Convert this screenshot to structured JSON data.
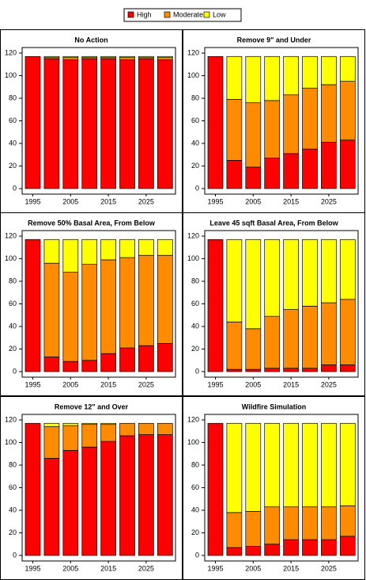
{
  "chart_data": [
    {
      "type": "bar",
      "stacked": true,
      "title": "No Action",
      "categories": [
        1995,
        null,
        2005,
        null,
        2015,
        null,
        2025,
        null
      ],
      "series": [
        {
          "name": "High",
          "color": "#ff0000",
          "values": [
            117,
            115,
            114,
            115,
            115,
            114,
            115,
            114
          ]
        },
        {
          "name": "Moderate",
          "color": "#ff8c00",
          "values": [
            0,
            1,
            2,
            1,
            1,
            2,
            1,
            2
          ]
        },
        {
          "name": "Low",
          "color": "#ffff00",
          "values": [
            0,
            1,
            1,
            1,
            1,
            1,
            1,
            1
          ]
        }
      ],
      "ylim": [
        0,
        120
      ],
      "yticks": [
        0,
        20,
        40,
        60,
        80,
        100,
        120
      ]
    },
    {
      "type": "bar",
      "stacked": true,
      "title": "Remove 9\" and Under",
      "categories": [
        1995,
        null,
        2005,
        null,
        2015,
        null,
        2025,
        null
      ],
      "series": [
        {
          "name": "High",
          "color": "#ff0000",
          "values": [
            117,
            25,
            19,
            27,
            31,
            35,
            41,
            43
          ]
        },
        {
          "name": "Moderate",
          "color": "#ff8c00",
          "values": [
            0,
            54,
            57,
            51,
            52,
            54,
            51,
            52
          ]
        },
        {
          "name": "Low",
          "color": "#ffff00",
          "values": [
            0,
            38,
            41,
            39,
            34,
            28,
            25,
            22
          ]
        }
      ],
      "ylim": [
        0,
        120
      ],
      "yticks": [
        0,
        20,
        40,
        60,
        80,
        100,
        120
      ]
    },
    {
      "type": "bar",
      "stacked": true,
      "title": "Remove 50% Basal Area, From Below",
      "categories": [
        1995,
        null,
        2005,
        null,
        2015,
        null,
        2025,
        null
      ],
      "series": [
        {
          "name": "High",
          "color": "#ff0000",
          "values": [
            117,
            13,
            9,
            10,
            16,
            21,
            23,
            25
          ]
        },
        {
          "name": "Moderate",
          "color": "#ff8c00",
          "values": [
            0,
            83,
            79,
            85,
            83,
            80,
            80,
            78
          ]
        },
        {
          "name": "Low",
          "color": "#ffff00",
          "values": [
            0,
            21,
            29,
            22,
            18,
            16,
            14,
            14
          ]
        }
      ],
      "ylim": [
        0,
        120
      ],
      "yticks": [
        0,
        20,
        40,
        60,
        80,
        100,
        120
      ]
    },
    {
      "type": "bar",
      "stacked": true,
      "title": "Leave 45 sqft Basal Area, From Below",
      "categories": [
        1995,
        null,
        2005,
        null,
        2015,
        null,
        2025,
        null
      ],
      "series": [
        {
          "name": "High",
          "color": "#ff0000",
          "values": [
            117,
            2,
            2,
            3,
            3,
            3,
            6,
            6
          ]
        },
        {
          "name": "Moderate",
          "color": "#ff8c00",
          "values": [
            0,
            42,
            36,
            46,
            52,
            55,
            55,
            58
          ]
        },
        {
          "name": "Low",
          "color": "#ffff00",
          "values": [
            0,
            73,
            79,
            68,
            62,
            59,
            56,
            53
          ]
        }
      ],
      "ylim": [
        0,
        120
      ],
      "yticks": [
        0,
        20,
        40,
        60,
        80,
        100,
        120
      ]
    },
    {
      "type": "bar",
      "stacked": true,
      "title": "Remove 12\" and Over",
      "categories": [
        1995,
        null,
        2005,
        null,
        2015,
        null,
        2025,
        null
      ],
      "series": [
        {
          "name": "High",
          "color": "#ff0000",
          "values": [
            117,
            86,
            93,
            96,
            101,
            106,
            107,
            107
          ]
        },
        {
          "name": "Moderate",
          "color": "#ff8c00",
          "values": [
            0,
            28,
            22,
            20,
            15,
            11,
            10,
            10
          ]
        },
        {
          "name": "Low",
          "color": "#ffff00",
          "values": [
            0,
            3,
            2,
            1,
            1,
            0,
            0,
            0
          ]
        }
      ],
      "ylim": [
        0,
        120
      ],
      "yticks": [
        0,
        20,
        40,
        60,
        80,
        100,
        120
      ]
    },
    {
      "type": "bar",
      "stacked": true,
      "title": "Wildfire Simulation",
      "categories": [
        1995,
        null,
        2005,
        null,
        2015,
        null,
        2025,
        null
      ],
      "series": [
        {
          "name": "High",
          "color": "#ff0000",
          "values": [
            117,
            7,
            8,
            10,
            14,
            14,
            14,
            17
          ]
        },
        {
          "name": "Moderate",
          "color": "#ff8c00",
          "values": [
            0,
            31,
            31,
            33,
            29,
            29,
            29,
            27
          ]
        },
        {
          "name": "Low",
          "color": "#ffff00",
          "values": [
            0,
            79,
            78,
            74,
            74,
            74,
            74,
            73
          ]
        }
      ],
      "ylim": [
        0,
        120
      ],
      "yticks": [
        0,
        20,
        40,
        60,
        80,
        100,
        120
      ]
    }
  ]
}
